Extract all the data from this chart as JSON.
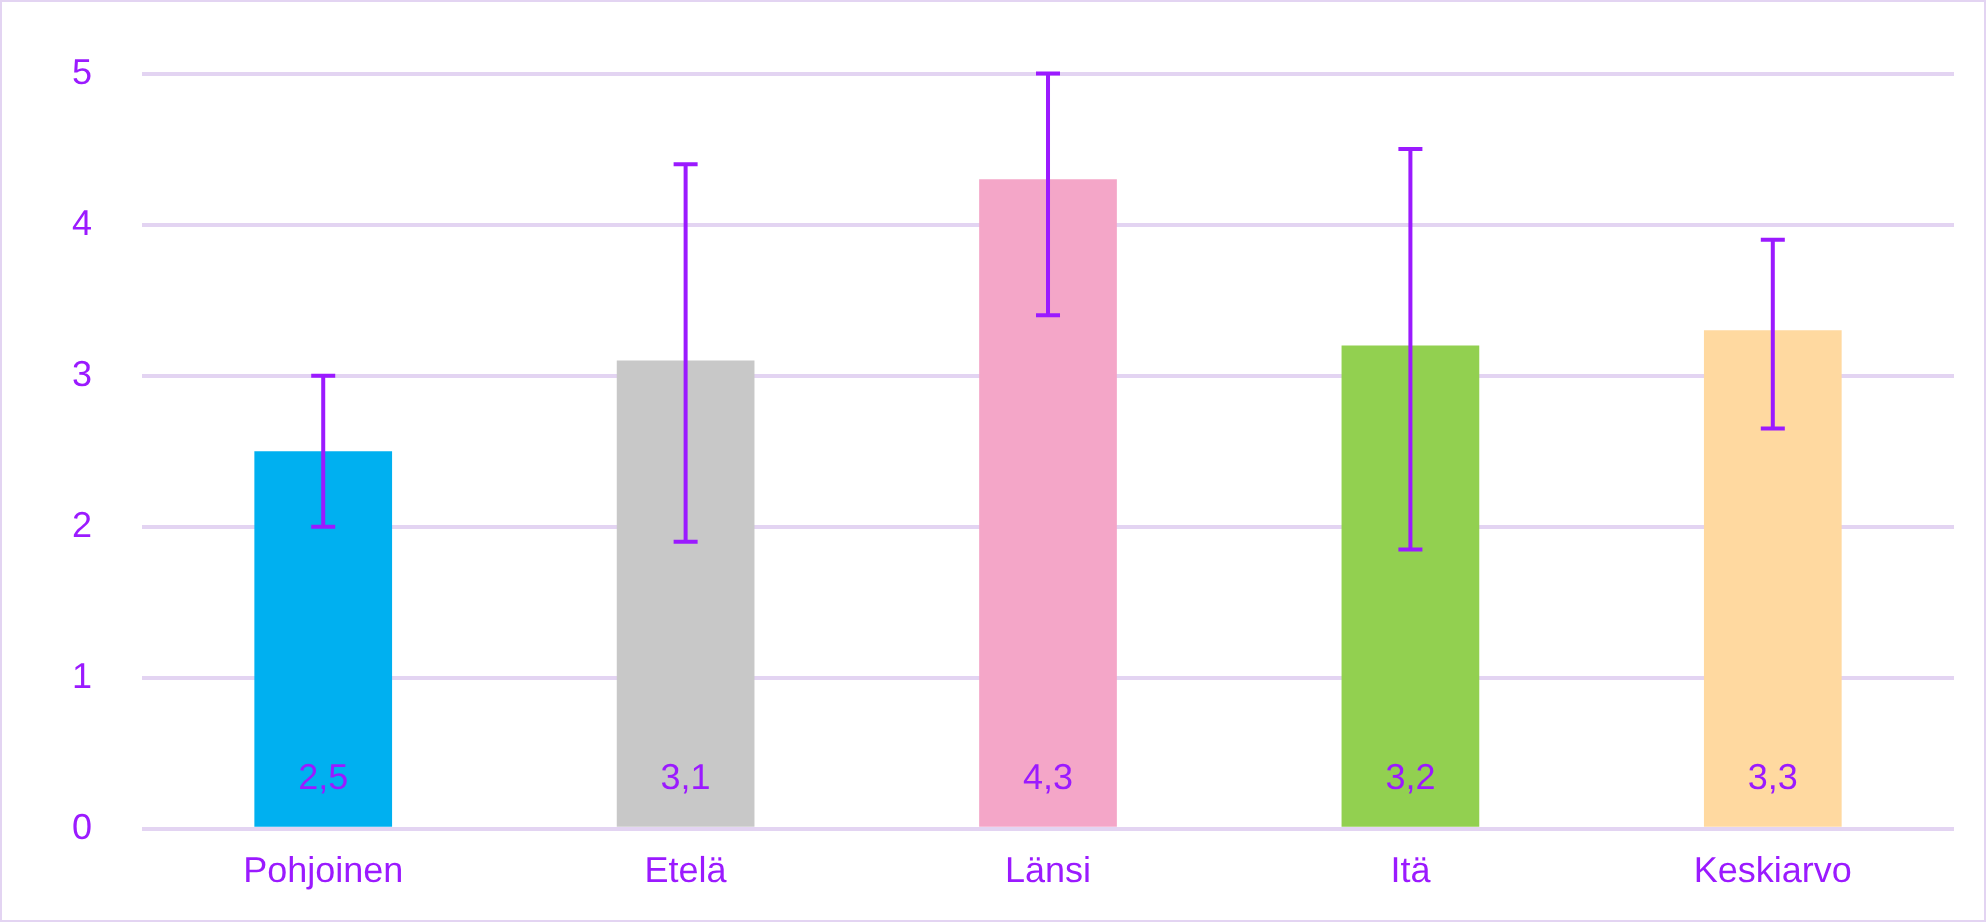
{
  "chart_data": {
    "type": "bar",
    "categories": [
      "Pohjoinen",
      "Etelä",
      "Länsi",
      "Itä",
      "Keskiarvo"
    ],
    "values": [
      2.5,
      3.1,
      4.3,
      3.2,
      3.3
    ],
    "colors": [
      "#00b0f0",
      "#c8c8c8",
      "#f4a6c8",
      "#92d050",
      "#ffd9a0"
    ],
    "errors": [
      [
        2.0,
        3.0
      ],
      [
        1.9,
        4.4
      ],
      [
        3.4,
        5.0
      ],
      [
        1.85,
        4.5
      ],
      [
        2.65,
        3.9
      ]
    ],
    "value_labels": [
      "2,5",
      "3,1",
      "4,3",
      "3,2",
      "3,3"
    ],
    "ylim": [
      0,
      5
    ],
    "yticks": [
      0,
      1,
      2,
      3,
      4,
      5
    ],
    "grid": "y"
  }
}
